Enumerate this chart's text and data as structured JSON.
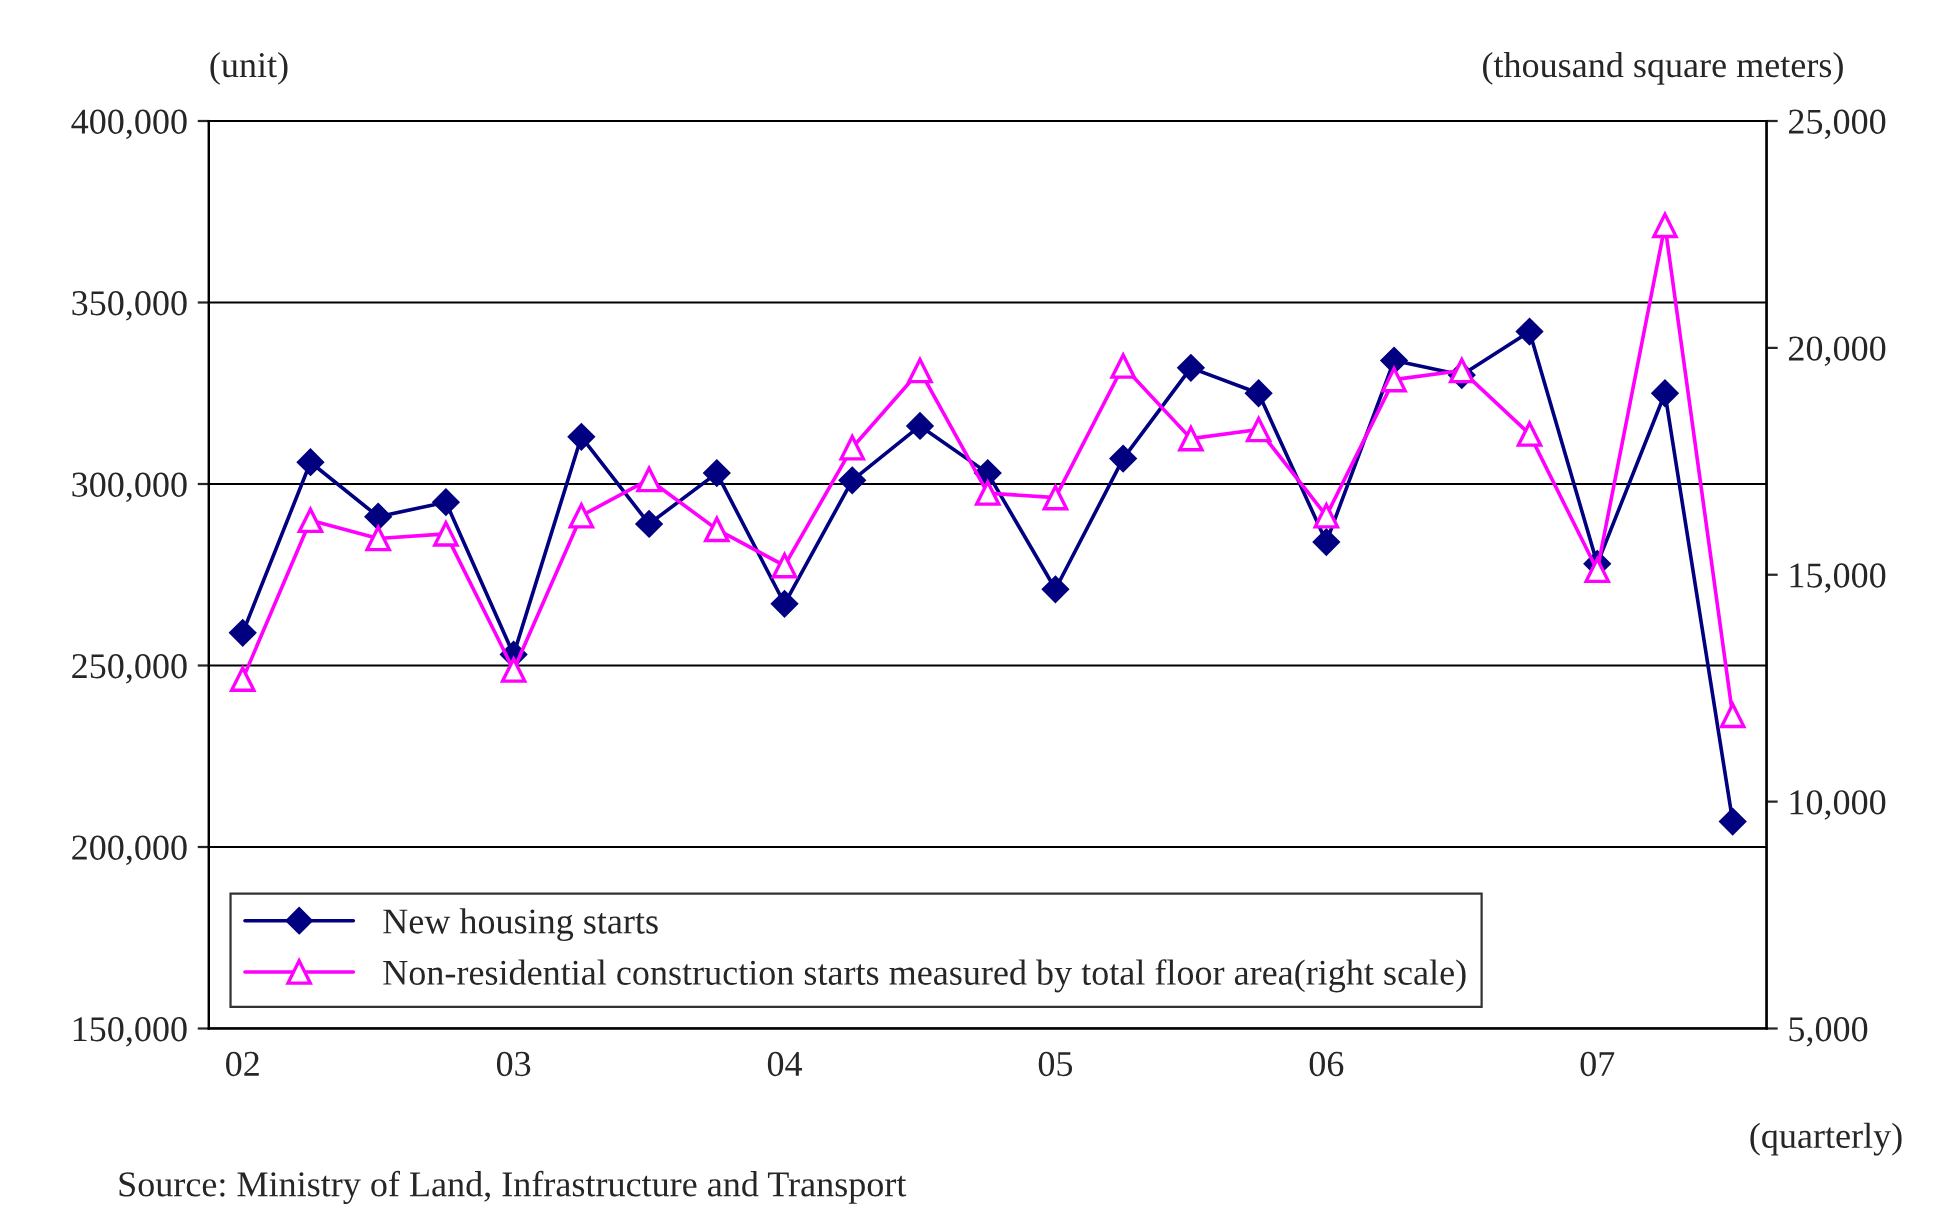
{
  "chart_data": {
    "type": "line",
    "categories": [
      "02",
      null,
      null,
      null,
      "03",
      null,
      null,
      null,
      "04",
      null,
      null,
      null,
      "05",
      null,
      null,
      null,
      "06",
      null,
      null,
      null,
      "07",
      null,
      null
    ],
    "series": [
      {
        "name": "New housing starts",
        "color": "#000080",
        "marker": "diamond",
        "axis": "y",
        "values": [
          259000,
          306000,
          291000,
          295000,
          253000,
          313000,
          289000,
          303000,
          267000,
          301000,
          316000,
          303000,
          271000,
          307000,
          332000,
          325000,
          284000,
          334000,
          330000,
          342000,
          278000,
          325000,
          207000
        ]
      },
      {
        "name": "Non-residential construction starts measured by total floor area(right scale)",
        "color": "#ff00ff",
        "marker": "triangle",
        "axis": "y2",
        "values": [
          12700,
          16200,
          15800,
          15900,
          12900,
          16300,
          17100,
          16000,
          15200,
          17800,
          19500,
          16800,
          16700,
          19600,
          18000,
          18200,
          16300,
          19300,
          19500,
          18100,
          15100,
          22700,
          11900
        ]
      }
    ],
    "ylabel": "(unit)",
    "y2label": "(thousand square meters)",
    "ylim": [
      150000,
      400000
    ],
    "yticks": [
      {
        "value": 150000,
        "label": "150,000"
      },
      {
        "value": 200000,
        "label": "200,000"
      },
      {
        "value": 250000,
        "label": "250,000"
      },
      {
        "value": 300000,
        "label": "300,000"
      },
      {
        "value": 350000,
        "label": "350,000"
      },
      {
        "value": 400000,
        "label": "400,000"
      }
    ],
    "y2lim": [
      5000,
      25000
    ],
    "y2ticks": [
      {
        "value": 5000,
        "label": "5,000"
      },
      {
        "value": 10000,
        "label": "10,000"
      },
      {
        "value": 15000,
        "label": "15,000"
      },
      {
        "value": 20000,
        "label": "20,000"
      },
      {
        "value": 25000,
        "label": "25,000"
      }
    ],
    "grid": "y",
    "legend": "bottom left",
    "line_style": "solid",
    "annotations": [
      "(quarterly)",
      "Source: Ministry of Land, Infrastructure and Transport"
    ]
  }
}
